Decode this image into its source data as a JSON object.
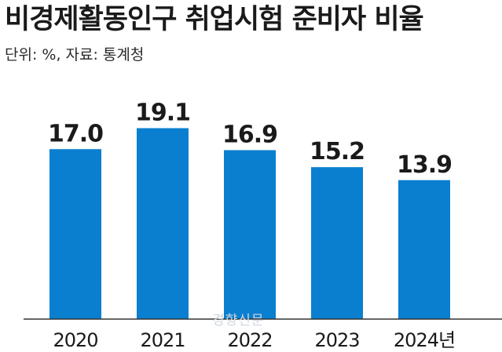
{
  "chart_data": {
    "type": "bar",
    "title": "비경제활동인구 취업시험 준비자 비율",
    "subtitle": "단위: %, 자료: 통계청",
    "categories": [
      "2020",
      "2021",
      "2022",
      "2023",
      "2024년"
    ],
    "values": [
      17.0,
      19.1,
      16.9,
      15.2,
      13.9
    ],
    "value_labels": [
      "17.0",
      "19.1",
      "16.9",
      "15.2",
      "13.9"
    ],
    "xlabel": "",
    "ylabel": "",
    "ylim": [
      0,
      24
    ],
    "grid": false,
    "bar_color": "#0a7fd0"
  },
  "watermark": "경향신문"
}
